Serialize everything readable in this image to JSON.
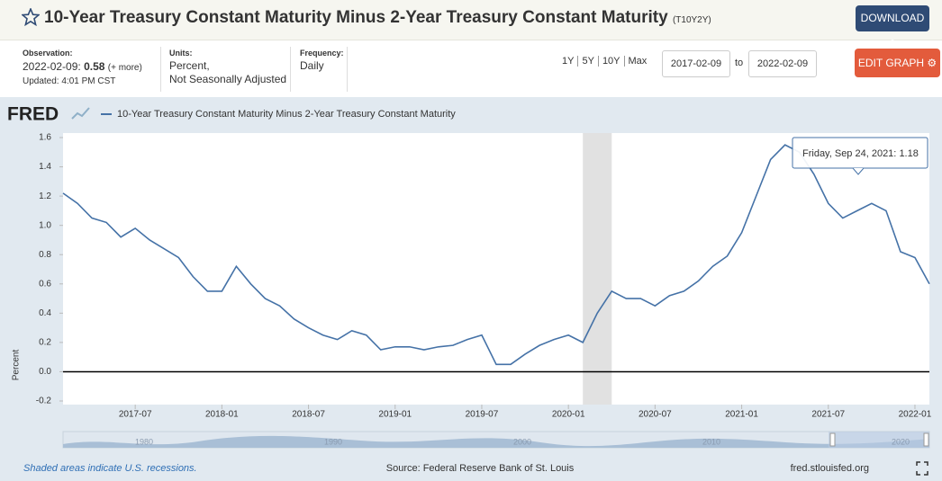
{
  "header": {
    "title": "10-Year Treasury Constant Maturity Minus 2-Year Treasury Constant Maturity",
    "series_id": "(T10Y2Y)",
    "download": "DOWNLOAD"
  },
  "info": {
    "observation_label": "Observation:",
    "observation_date": "2022-02-09:",
    "observation_value": 0.58,
    "more": "(+ more)",
    "updated": "Updated: 4:01 PM CST",
    "units_label": "Units:",
    "units": [
      "Percent,",
      "Not Seasonally Adjusted"
    ],
    "frequency_label": "Frequency:",
    "frequency": "Daily",
    "ranges": [
      "1Y",
      "5Y",
      "10Y",
      "Max"
    ],
    "start": "2017-02-09",
    "to": "to",
    "end": "2022-02-09",
    "edit": "EDIT GRAPH"
  },
  "chart_data": {
    "type": "line",
    "logo": "FRED",
    "ylabel": "Percent",
    "x": [
      "2017-02",
      "2017-03",
      "2017-04",
      "2017-05",
      "2017-06",
      "2017-07",
      "2017-08",
      "2017-09",
      "2017-10",
      "2017-11",
      "2017-12",
      "2018-01",
      "2018-02",
      "2018-03",
      "2018-04",
      "2018-05",
      "2018-06",
      "2018-07",
      "2018-08",
      "2018-09",
      "2018-10",
      "2018-11",
      "2018-12",
      "2019-01",
      "2019-02",
      "2019-03",
      "2019-04",
      "2019-05",
      "2019-06",
      "2019-07",
      "2019-08",
      "2019-09",
      "2019-10",
      "2019-11",
      "2019-12",
      "2020-01",
      "2020-02",
      "2020-03",
      "2020-04",
      "2020-05",
      "2020-06",
      "2020-07",
      "2020-08",
      "2020-09",
      "2020-10",
      "2020-11",
      "2020-12",
      "2021-01",
      "2021-02",
      "2021-03",
      "2021-04",
      "2021-05",
      "2021-06",
      "2021-07",
      "2021-08",
      "2021-09",
      "2021-10",
      "2021-11",
      "2021-12",
      "2022-01",
      "2022-02"
    ],
    "series": [
      {
        "name": "10-Year Treasury Constant Maturity Minus 2-Year Treasury Constant Maturity",
        "color": "#4572a7",
        "values": [
          1.22,
          1.15,
          1.05,
          1.02,
          0.92,
          0.98,
          0.9,
          0.84,
          0.78,
          0.65,
          0.55,
          0.55,
          0.72,
          0.6,
          0.5,
          0.45,
          0.36,
          0.3,
          0.25,
          0.22,
          0.28,
          0.25,
          0.15,
          0.17,
          0.17,
          0.15,
          0.17,
          0.18,
          0.22,
          0.25,
          0.05,
          0.05,
          0.12,
          0.18,
          0.22,
          0.25,
          0.2,
          0.4,
          0.55,
          0.5,
          0.5,
          0.45,
          0.52,
          0.55,
          0.62,
          0.72,
          0.79,
          0.95,
          1.2,
          1.45,
          1.55,
          1.5,
          1.35,
          1.15,
          1.05,
          1.1,
          1.15,
          1.1,
          0.82,
          0.78,
          0.6
        ]
      }
    ],
    "xlim": [
      "2017-02",
      "2022-02"
    ],
    "xticks": [
      "2017-07",
      "2018-01",
      "2018-07",
      "2019-01",
      "2019-07",
      "2020-01",
      "2020-07",
      "2021-01",
      "2021-07",
      "2022-01"
    ],
    "ylim": [
      -0.2,
      1.6
    ],
    "yticks": [
      -0.2,
      {
        "value": 0,
        "label": "0.0"
      },
      0.2,
      0.4,
      0.6,
      0.8,
      {
        "value": 1,
        "label": "1.0"
      },
      1.2,
      1.4,
      1.6
    ],
    "recession": {
      "start": "2020-02",
      "end": "2020-04"
    },
    "tooltip": {
      "label": "Friday, Sep 24, 2021:",
      "value": 1.18
    },
    "navigator_labels": [
      "1980",
      "1990",
      "2000",
      "2010",
      "2020"
    ]
  },
  "footer": {
    "note": "Shaded areas indicate U.S. recessions.",
    "source": "Source: Federal Reserve Bank of St. Louis",
    "site": "fred.stlouisfed.org"
  }
}
